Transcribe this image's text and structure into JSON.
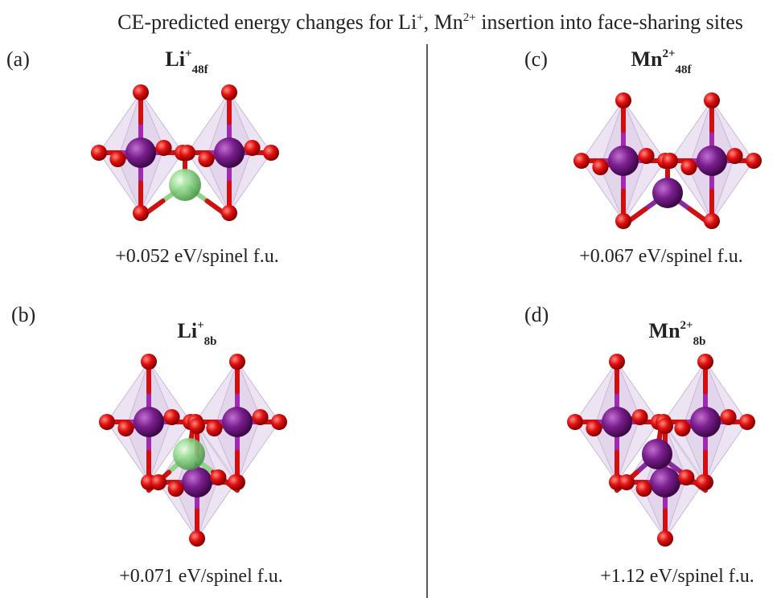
{
  "header": {
    "title": [
      "CE-predicted energy changes for Li",
      "+",
      ", Mn",
      "2+",
      " insertion into face-sharing sites"
    ]
  },
  "panels": [
    {
      "label": "(a)",
      "species": "Li",
      "charge": "+",
      "site": "48f",
      "energy": "+0.052 eV/spinel f.u."
    },
    {
      "label": "(b)",
      "species": "Li",
      "charge": "+",
      "site": "8b",
      "energy": "+0.071 eV/spinel f.u."
    },
    {
      "label": "(c)",
      "species": "Mn",
      "charge": "2+",
      "site": "48f",
      "energy": "+0.067 eV/spinel f.u."
    },
    {
      "label": "(d)",
      "species": "Mn",
      "charge": "2+",
      "site": "8b",
      "energy": "+1.12 eV/spinel f.u."
    }
  ]
}
